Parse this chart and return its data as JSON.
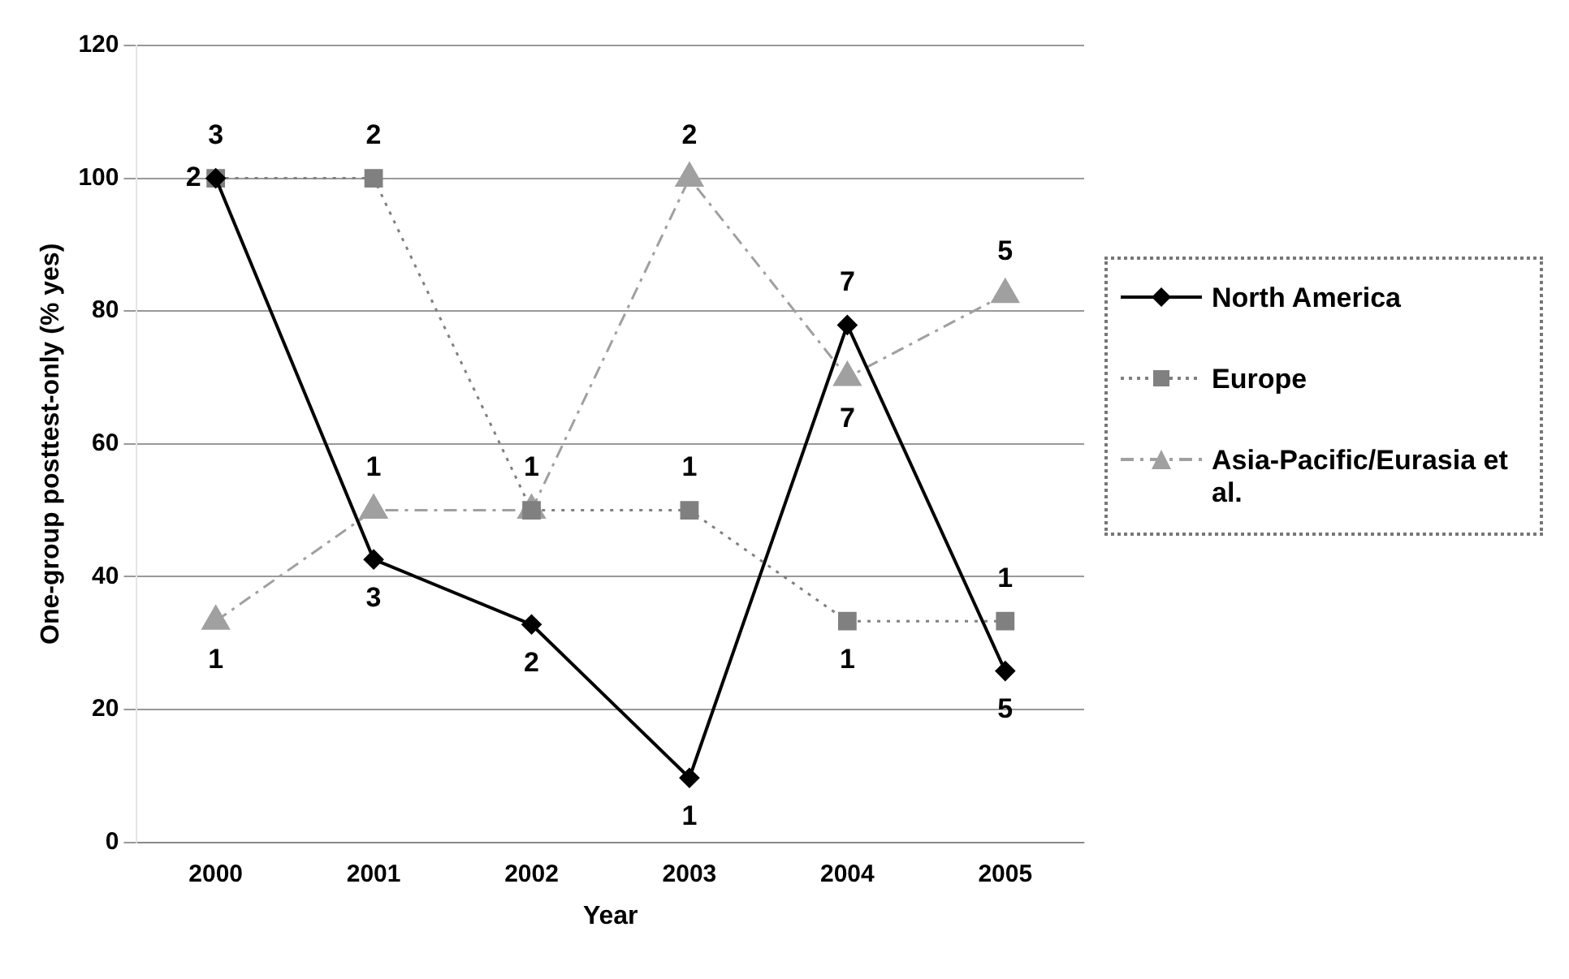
{
  "chart_data": {
    "type": "line",
    "xlabel": "Year",
    "ylabel": "One-group posttest-only (% yes)",
    "categories": [
      "2000",
      "2001",
      "2002",
      "2003",
      "2004",
      "2005"
    ],
    "series": [
      {
        "name": "North America",
        "color": "#000000",
        "values": [
          100,
          42.6,
          32.8,
          9.7,
          77.9,
          25.8
        ],
        "marker": "diamond",
        "line_style": "solid"
      },
      {
        "name": "Europe",
        "color": "#808080",
        "values": [
          100,
          100,
          50,
          50,
          33.3,
          33.3
        ],
        "marker": "square",
        "line_style": "dotted"
      },
      {
        "name": "Asia-Pacific/Eurasia et al.",
        "color": "#a0a0a0",
        "values": [
          33.3,
          50,
          50,
          100,
          70,
          82.5
        ],
        "marker": "triangle",
        "line_style": "dashed"
      }
    ],
    "annotations": [
      {
        "text": "3",
        "x": "2000",
        "y": 100
      },
      {
        "text": "2",
        "x": "2000",
        "y": 100
      },
      {
        "text": "1",
        "x": "2000",
        "y": 33.3
      },
      {
        "text": "2",
        "x": "2001",
        "y": 100
      },
      {
        "text": "1",
        "x": "2001",
        "y": 50
      },
      {
        "text": "3",
        "x": "2001",
        "y": 42.6
      },
      {
        "text": "1",
        "x": "2002",
        "y": 50
      },
      {
        "text": "2",
        "x": "2002",
        "y": 32.8
      },
      {
        "text": "2",
        "x": "2003",
        "y": 100
      },
      {
        "text": "1",
        "x": "2003",
        "y": 50
      },
      {
        "text": "1",
        "x": "2003",
        "y": 9.7
      },
      {
        "text": "7",
        "x": "2004",
        "y": 77.9
      },
      {
        "text": "7",
        "x": "2004",
        "y": 70
      },
      {
        "text": "1",
        "x": "2004",
        "y": 33.3
      },
      {
        "text": "5",
        "x": "2005",
        "y": 82.5
      },
      {
        "text": "1",
        "x": "2005",
        "y": 33.3
      },
      {
        "text": "5",
        "x": "2005",
        "y": 25.8
      }
    ],
    "ylim": [
      0,
      120
    ],
    "yticks": [
      0,
      20,
      40,
      60,
      80,
      100,
      120
    ],
    "grid": "y",
    "legend": "right"
  }
}
